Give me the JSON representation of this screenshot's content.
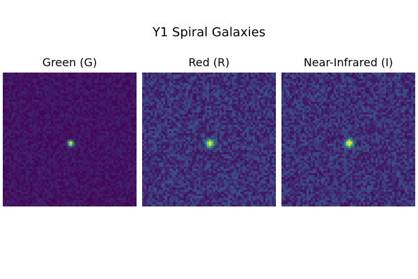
{
  "figure": {
    "title": "Y1 Spiral Galaxies"
  },
  "panels": [
    {
      "label": "Green (G)",
      "background": "#43176a",
      "noise": 0.1,
      "blob_peak": 1.0,
      "blob_sigma": 2.2
    },
    {
      "label": "Red (R)",
      "background": "#3e2e7e",
      "noise": 0.22,
      "blob_peak": 1.0,
      "blob_sigma": 3.0
    },
    {
      "label": "Near-Infrared (I)",
      "background": "#3e2e7e",
      "noise": 0.22,
      "blob_peak": 1.0,
      "blob_sigma": 3.0
    }
  ],
  "colormap": "viridis"
}
